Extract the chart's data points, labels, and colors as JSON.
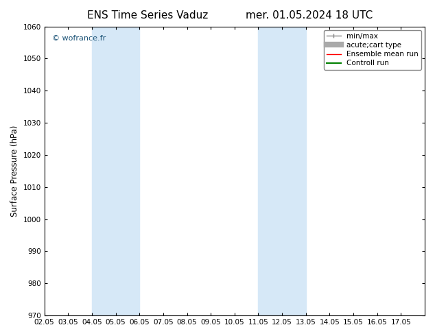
{
  "title_left": "ENS Time Series Vaduz",
  "title_right": "mer. 01.05.2024 18 UTC",
  "ylabel": "Surface Pressure (hPa)",
  "ylim": [
    970,
    1060
  ],
  "yticks": [
    970,
    980,
    990,
    1000,
    1010,
    1020,
    1030,
    1040,
    1050,
    1060
  ],
  "xlim": [
    0,
    16
  ],
  "xtick_labels": [
    "02.05",
    "03.05",
    "04.05",
    "05.05",
    "06.05",
    "07.05",
    "08.05",
    "09.05",
    "10.05",
    "11.05",
    "12.05",
    "13.05",
    "14.05",
    "15.05",
    "16.05",
    "17.05"
  ],
  "shaded_bands": [
    {
      "xmin": 2.0,
      "xmax": 4.0
    },
    {
      "xmin": 9.0,
      "xmax": 11.0
    }
  ],
  "band_color": "#d6e8f7",
  "background_color": "#ffffff",
  "watermark": "© wofrance.fr",
  "legend_items": [
    {
      "label": "min/max",
      "color": "#888888",
      "linestyle": "-",
      "linewidth": 1.0
    },
    {
      "label": "acute;cart type",
      "color": "#aaaaaa",
      "linestyle": "-",
      "linewidth": 6.0
    },
    {
      "label": "Ensemble mean run",
      "color": "#ff0000",
      "linestyle": "-",
      "linewidth": 1.0
    },
    {
      "label": "Controll run",
      "color": "#008000",
      "linestyle": "-",
      "linewidth": 1.5
    }
  ],
  "border_color": "#000000",
  "tick_color": "#000000",
  "tick_fontsize": 7.5,
  "ylabel_fontsize": 8.5,
  "title_fontsize": 11,
  "legend_fontsize": 7.5,
  "watermark_color": "#1a5276",
  "watermark_fontsize": 8
}
